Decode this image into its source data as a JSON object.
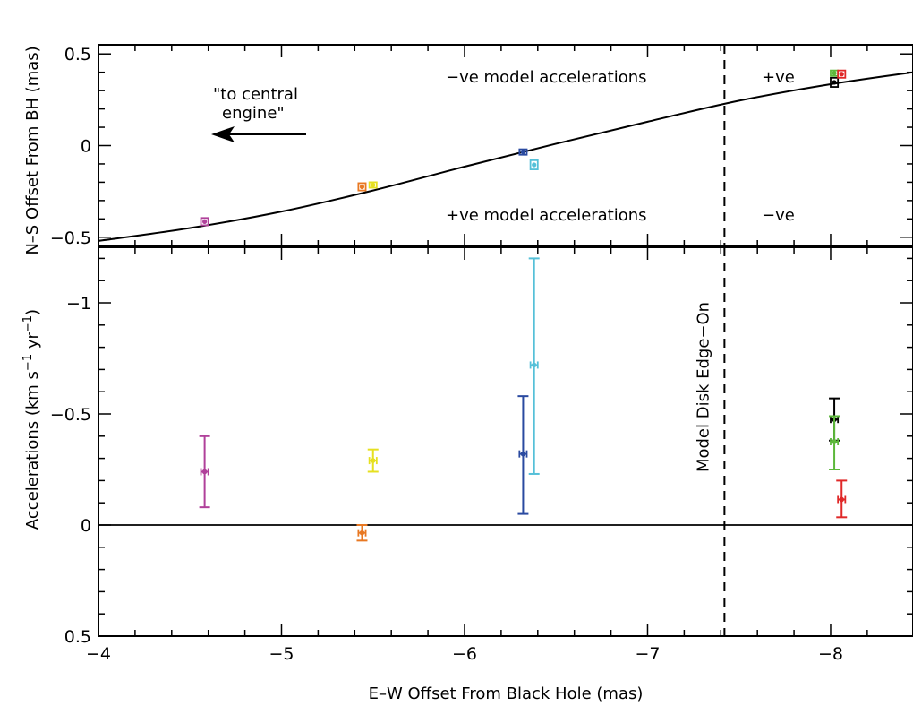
{
  "chart_data": [
    {
      "panel": "top",
      "type": "scatter",
      "ylabel": "N–S Offset From BH (mas)",
      "xlim": [
        -4,
        -8.45
      ],
      "ylim": [
        -0.55,
        0.55
      ],
      "yticks": [
        {
          "value": 0.5,
          "label": "0.5"
        },
        {
          "value": 0,
          "label": "0"
        },
        {
          "value": -0.5,
          "label": "−0.5"
        }
      ],
      "model_curve": {
        "x": [
          -4.0,
          -4.5,
          -5.0,
          -5.5,
          -6.0,
          -6.5,
          -7.0,
          -7.5,
          -8.0,
          -8.45
        ],
        "y": [
          -0.52,
          -0.45,
          -0.36,
          -0.245,
          -0.115,
          0.01,
          0.13,
          0.245,
          0.335,
          0.4
        ]
      },
      "points": [
        {
          "color": "#b0409a",
          "x": -4.58,
          "xerr": 0.02,
          "y": -0.415,
          "yerr": 0.02
        },
        {
          "color": "#e87822",
          "x": -5.44,
          "xerr": 0.02,
          "y": -0.225,
          "yerr": 0.02
        },
        {
          "color": "#e6e020",
          "x": -5.5,
          "xerr": 0.02,
          "y": -0.215,
          "yerr": 0.015
        },
        {
          "color": "#2a4aa0",
          "x": -6.32,
          "xerr": 0.02,
          "y": -0.035,
          "yerr": 0.015
        },
        {
          "color": "#55c0d8",
          "x": -6.38,
          "xerr": 0.02,
          "y": -0.105,
          "yerr": 0.025
        },
        {
          "color": "#000000",
          "x": -8.02,
          "xerr": 0.02,
          "y": 0.345,
          "yerr": 0.025
        },
        {
          "color": "#5cb83a",
          "x": -8.02,
          "xerr": 0.02,
          "y": 0.395,
          "yerr": 0.015
        },
        {
          "color": "#e02828",
          "x": -8.06,
          "xerr": 0.02,
          "y": 0.39,
          "yerr": 0.02
        }
      ],
      "annotations": {
        "neg_top": "−ve model accelerations",
        "pos_top_right": "+ve",
        "pos_bottom": "+ve model accelerations",
        "neg_bottom_right": "−ve",
        "arrow_line1": "\"to central",
        "arrow_line2": "engine\""
      }
    },
    {
      "panel": "bottom",
      "type": "scatter",
      "xlabel": "E–W Offset From Black Hole (mas)",
      "ylabel_main": "Accelerations (km s",
      "ylabel_sup1": "−1",
      "ylabel_mid": " yr",
      "ylabel_sup2": "−1",
      "ylabel_end": ")",
      "xlim": [
        -4,
        -8.45
      ],
      "ylim": [
        0.5,
        -1.25
      ],
      "xticks": [
        {
          "value": -4,
          "label": "−4"
        },
        {
          "value": -5,
          "label": "−5"
        },
        {
          "value": -6,
          "label": "−6"
        },
        {
          "value": -7,
          "label": "−7"
        },
        {
          "value": -8,
          "label": "−8"
        }
      ],
      "yticks": [
        {
          "value": -1,
          "label": "−1"
        },
        {
          "value": -0.5,
          "label": "−0.5"
        },
        {
          "value": 0,
          "label": "0"
        },
        {
          "value": 0.5,
          "label": "0.5"
        }
      ],
      "zero_line": 0,
      "edge_on_x": -7.42,
      "edge_on_label": "Model Disk Edge−On",
      "points": [
        {
          "color": "#b0409a",
          "x": -4.58,
          "xerr": 0.02,
          "y": -0.24,
          "ylo": -0.4,
          "yhi": -0.08
        },
        {
          "color": "#e87822",
          "x": -5.44,
          "xerr": 0.02,
          "y": 0.035,
          "ylo": 0.0,
          "yhi": 0.07
        },
        {
          "color": "#e6e020",
          "x": -5.5,
          "xerr": 0.02,
          "y": -0.29,
          "ylo": -0.34,
          "yhi": -0.24
        },
        {
          "color": "#2a4aa0",
          "x": -6.32,
          "xerr": 0.02,
          "y": -0.32,
          "ylo": -0.58,
          "yhi": -0.05
        },
        {
          "color": "#55c0d8",
          "x": -6.38,
          "xerr": 0.02,
          "y": -0.72,
          "ylo": -1.2,
          "yhi": -0.23
        },
        {
          "color": "#000000",
          "x": -8.02,
          "xerr": 0.02,
          "y": -0.475,
          "ylo": -0.57,
          "yhi": -0.38
        },
        {
          "color": "#5cb83a",
          "x": -8.02,
          "xerr": 0.02,
          "y": -0.375,
          "ylo": -0.49,
          "yhi": -0.25
        },
        {
          "color": "#e02828",
          "x": -8.06,
          "xerr": 0.02,
          "y": -0.115,
          "ylo": -0.2,
          "yhi": -0.035
        }
      ]
    }
  ]
}
